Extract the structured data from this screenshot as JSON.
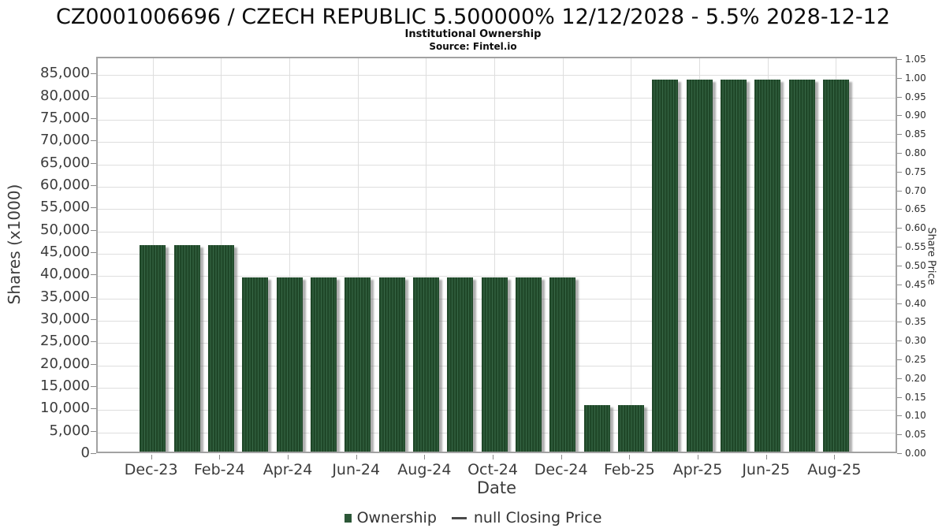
{
  "header": {
    "title": "CZ0001006696 / CZECH REPUBLIC 5.500000% 12/12/2028 - 5.5% 2028-12-12",
    "subtitle": "Institutional Ownership",
    "source": "Source: Fintel.io"
  },
  "chart_data": {
    "type": "bar",
    "title": "CZ0001006696 / CZECH REPUBLIC 5.500000% 12/12/2028 - 5.5% 2028-12-12",
    "subtitle": "Institutional Ownership",
    "source": "Source: Fintel.io",
    "xlabel": "Date",
    "ylabel_left": "Shares (x1000)",
    "ylabel_right": "Share Price",
    "categories": [
      "Dec-23",
      "Jan-24",
      "Feb-24",
      "Mar-24",
      "Apr-24",
      "May-24",
      "Jun-24",
      "Jul-24",
      "Aug-24",
      "Sep-24",
      "Oct-24",
      "Nov-24",
      "Dec-24",
      "Jan-25",
      "Feb-25",
      "Mar-25",
      "Apr-25",
      "May-25",
      "Jun-25",
      "Jul-25",
      "Aug-25"
    ],
    "series": [
      {
        "name": "Ownership",
        "values": [
          46900,
          46900,
          46900,
          39700,
          39700,
          39700,
          39700,
          39700,
          39700,
          39700,
          39700,
          39700,
          39700,
          11200,
          11200,
          83900,
          83900,
          83900,
          83900,
          83900,
          83900
        ]
      },
      {
        "name": "null Closing Price",
        "values": []
      }
    ],
    "left_axis": {
      "max": 88750,
      "ticks": [
        0,
        5000,
        10000,
        15000,
        20000,
        25000,
        30000,
        35000,
        40000,
        45000,
        50000,
        55000,
        60000,
        65000,
        70000,
        75000,
        80000,
        85000
      ]
    },
    "right_axis": {
      "max": 1.0563,
      "ticks": [
        "0.00",
        "0.05",
        "0.10",
        "0.15",
        "0.20",
        "0.25",
        "0.30",
        "0.35",
        "0.40",
        "0.45",
        "0.50",
        "0.55",
        "0.60",
        "0.65",
        "0.70",
        "0.75",
        "0.80",
        "0.85",
        "0.90",
        "0.95",
        "1.00",
        "1.05"
      ]
    },
    "xtick_labels": [
      "Dec-23",
      "Feb-24",
      "Apr-24",
      "Jun-24",
      "Aug-24",
      "Oct-24",
      "Dec-24",
      "Feb-25",
      "Apr-25",
      "Jun-25",
      "Aug-25"
    ],
    "grid": true,
    "legend_position": "bottom"
  },
  "legend": {
    "ownership_label": "Ownership",
    "price_label": "null Closing Price"
  },
  "colors": {
    "bar_stripe_dark": "#1f4728",
    "bar_stripe_light": "#376746",
    "legend_swatch": "#2c5737",
    "grid": "#dedede",
    "axis_border": "#a2a2a2",
    "tick": "#8a8a8a",
    "label_text": "#3c3c3c"
  }
}
